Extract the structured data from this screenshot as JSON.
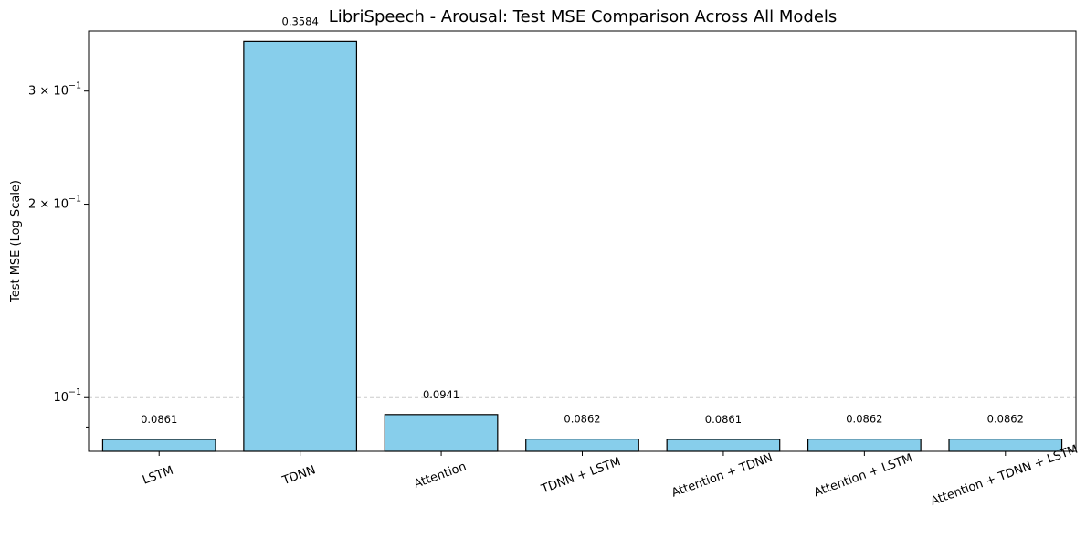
{
  "chart_data": {
    "type": "bar",
    "title": "LibriSpeech - Arousal: Test MSE Comparison Across All Models",
    "xlabel": "",
    "ylabel": "Test MSE (Log Scale)",
    "yscale": "log",
    "ylim": [
      0.0825,
      0.372
    ],
    "categories": [
      "LSTM",
      "TDNN",
      "Attention",
      "TDNN + LSTM",
      "Attention + TDNN",
      "Attention + LSTM",
      "Attention + TDNN + LSTM"
    ],
    "values": [
      0.0861,
      0.3584,
      0.0941,
      0.0862,
      0.0861,
      0.0862,
      0.0862
    ],
    "value_labels": [
      "0.0861",
      "0.3584",
      "0.0941",
      "0.0862",
      "0.0861",
      "0.0862",
      "0.0862"
    ],
    "yticks": [
      {
        "value": 0.3,
        "base": "3 × 10",
        "exp": "−1"
      },
      {
        "value": 0.2,
        "base": "2 × 10",
        "exp": "−1"
      },
      {
        "value": 0.1,
        "base": "10",
        "exp": "−1"
      }
    ],
    "minor_yticks": [
      0.09
    ],
    "grid": {
      "y_at": [
        0.1
      ],
      "style": "dashed"
    },
    "bar_color": "#87CEEB",
    "edge_color": "#000000"
  }
}
